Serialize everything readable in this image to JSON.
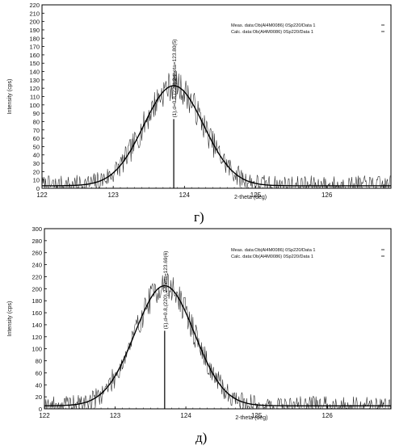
{
  "chart_data": [
    {
      "type": "line",
      "caption": "г)",
      "xlabel": "2-theta (deg)",
      "ylabel": "Intensity (cps)",
      "xlim": [
        122,
        126.9
      ],
      "ylim": [
        0,
        220
      ],
      "x_ticks": [
        122,
        123,
        124,
        125,
        126
      ],
      "y_ticks": [
        0,
        10,
        20,
        30,
        40,
        50,
        60,
        70,
        80,
        90,
        100,
        110,
        120,
        130,
        140,
        150,
        160,
        170,
        180,
        190,
        200,
        210,
        220
      ],
      "legend": [
        "Meas. data:Ob(Al4M0086) 0Sp220/Data 1",
        "Calc. data:Ob(Al4M0086) 0Sp220/Data 1"
      ],
      "legend_position": "top-right",
      "peak_label": "(1),d=0.8,(220),2-theta=123.80(5)",
      "peak": {
        "center": 123.85,
        "height": 120,
        "sigma": 0.42,
        "baseline": 3,
        "noise": 15
      },
      "marker_x": 123.85,
      "marker_height": 83
    },
    {
      "type": "line",
      "caption": "д)",
      "xlabel": "2-theta (deg)",
      "ylabel": "Intensity (cps)",
      "xlim": [
        122,
        126.9
      ],
      "ylim": [
        0,
        300
      ],
      "x_ticks": [
        122,
        123,
        124,
        125,
        126
      ],
      "y_ticks": [
        0,
        20,
        40,
        60,
        80,
        100,
        120,
        140,
        160,
        180,
        200,
        220,
        240,
        260,
        280,
        300
      ],
      "legend": [
        "Meas. data:Ob(Al4M0086) 0Sp220/Data 1",
        "Calc. data:Ob(Al4M0086) 0Sp220/Data 1"
      ],
      "legend_position": "top-right",
      "peak_label": "(1),d=0.8,(220),2-theta=123.69(6)",
      "peak": {
        "center": 123.7,
        "height": 200,
        "sigma": 0.42,
        "baseline": 5,
        "noise": 20
      },
      "marker_x": 123.7,
      "marker_height": 130
    }
  ]
}
